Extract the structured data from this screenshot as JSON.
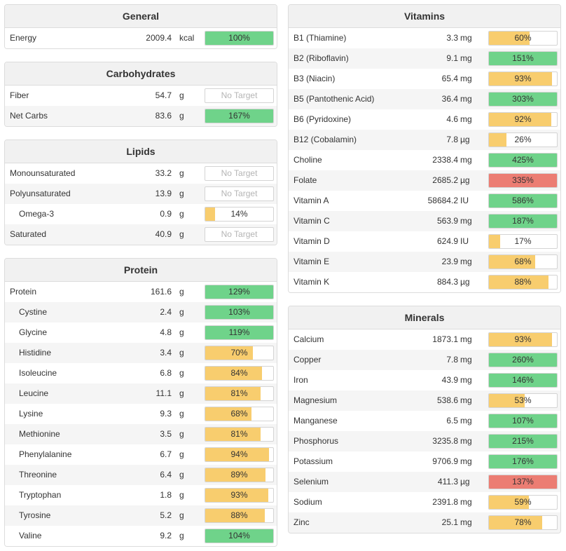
{
  "colors": {
    "green": "#6fd38a",
    "yellow": "#f8cd6e",
    "red": "#ec7d73"
  },
  "left": [
    {
      "title": "General",
      "rows": [
        {
          "name": "Energy",
          "amount": "2009.4",
          "unit": "kcal",
          "pct": 100,
          "label": "100%",
          "status": "green"
        }
      ]
    },
    {
      "title": "Carbohydrates",
      "rows": [
        {
          "name": "Fiber",
          "amount": "54.7",
          "unit": "g",
          "pct": null,
          "label": "No Target",
          "status": "none"
        },
        {
          "name": "Net Carbs",
          "amount": "83.6",
          "unit": "g",
          "pct": 167,
          "label": "167%",
          "status": "green"
        }
      ]
    },
    {
      "title": "Lipids",
      "rows": [
        {
          "name": "Monounsaturated",
          "amount": "33.2",
          "unit": "g",
          "pct": null,
          "label": "No Target",
          "status": "none"
        },
        {
          "name": "Polyunsaturated",
          "amount": "13.9",
          "unit": "g",
          "pct": null,
          "label": "No Target",
          "status": "none"
        },
        {
          "name": "Omega-3",
          "amount": "0.9",
          "unit": "g",
          "pct": 14,
          "label": "14%",
          "status": "yellow",
          "sub": true
        },
        {
          "name": "Saturated",
          "amount": "40.9",
          "unit": "g",
          "pct": null,
          "label": "No Target",
          "status": "none"
        }
      ]
    },
    {
      "title": "Protein",
      "rows": [
        {
          "name": "Protein",
          "amount": "161.6",
          "unit": "g",
          "pct": 129,
          "label": "129%",
          "status": "green"
        },
        {
          "name": "Cystine",
          "amount": "2.4",
          "unit": "g",
          "pct": 103,
          "label": "103%",
          "status": "green",
          "sub": true
        },
        {
          "name": "Glycine",
          "amount": "4.8",
          "unit": "g",
          "pct": 119,
          "label": "119%",
          "status": "green",
          "sub": true
        },
        {
          "name": "Histidine",
          "amount": "3.4",
          "unit": "g",
          "pct": 70,
          "label": "70%",
          "status": "yellow",
          "sub": true
        },
        {
          "name": "Isoleucine",
          "amount": "6.8",
          "unit": "g",
          "pct": 84,
          "label": "84%",
          "status": "yellow",
          "sub": true
        },
        {
          "name": "Leucine",
          "amount": "11.1",
          "unit": "g",
          "pct": 81,
          "label": "81%",
          "status": "yellow",
          "sub": true
        },
        {
          "name": "Lysine",
          "amount": "9.3",
          "unit": "g",
          "pct": 68,
          "label": "68%",
          "status": "yellow",
          "sub": true
        },
        {
          "name": "Methionine",
          "amount": "3.5",
          "unit": "g",
          "pct": 81,
          "label": "81%",
          "status": "yellow",
          "sub": true
        },
        {
          "name": "Phenylalanine",
          "amount": "6.7",
          "unit": "g",
          "pct": 94,
          "label": "94%",
          "status": "yellow",
          "sub": true
        },
        {
          "name": "Threonine",
          "amount": "6.4",
          "unit": "g",
          "pct": 89,
          "label": "89%",
          "status": "yellow",
          "sub": true
        },
        {
          "name": "Tryptophan",
          "amount": "1.8",
          "unit": "g",
          "pct": 93,
          "label": "93%",
          "status": "yellow",
          "sub": true
        },
        {
          "name": "Tyrosine",
          "amount": "5.2",
          "unit": "g",
          "pct": 88,
          "label": "88%",
          "status": "yellow",
          "sub": true
        },
        {
          "name": "Valine",
          "amount": "9.2",
          "unit": "g",
          "pct": 104,
          "label": "104%",
          "status": "green",
          "sub": true
        }
      ]
    }
  ],
  "right": [
    {
      "title": "Vitamins",
      "rows": [
        {
          "name": "B1 (Thiamine)",
          "amount": "3.3",
          "unit": "mg",
          "pct": 60,
          "label": "60%",
          "status": "yellow"
        },
        {
          "name": "B2 (Riboflavin)",
          "amount": "9.1",
          "unit": "mg",
          "pct": 151,
          "label": "151%",
          "status": "green"
        },
        {
          "name": "B3 (Niacin)",
          "amount": "65.4",
          "unit": "mg",
          "pct": 93,
          "label": "93%",
          "status": "yellow"
        },
        {
          "name": "B5 (Pantothenic Acid)",
          "amount": "36.4",
          "unit": "mg",
          "pct": 303,
          "label": "303%",
          "status": "green"
        },
        {
          "name": "B6 (Pyridoxine)",
          "amount": "4.6",
          "unit": "mg",
          "pct": 92,
          "label": "92%",
          "status": "yellow"
        },
        {
          "name": "B12 (Cobalamin)",
          "amount": "7.8",
          "unit": "µg",
          "pct": 26,
          "label": "26%",
          "status": "yellow"
        },
        {
          "name": "Choline",
          "amount": "2338.4",
          "unit": "mg",
          "pct": 425,
          "label": "425%",
          "status": "green"
        },
        {
          "name": "Folate",
          "amount": "2685.2",
          "unit": "µg",
          "pct": 335,
          "label": "335%",
          "status": "red"
        },
        {
          "name": "Vitamin A",
          "amount": "58684.2",
          "unit": "IU",
          "pct": 586,
          "label": "586%",
          "status": "green"
        },
        {
          "name": "Vitamin C",
          "amount": "563.9",
          "unit": "mg",
          "pct": 187,
          "label": "187%",
          "status": "green"
        },
        {
          "name": "Vitamin D",
          "amount": "624.9",
          "unit": "IU",
          "pct": 17,
          "label": "17%",
          "status": "yellow"
        },
        {
          "name": "Vitamin E",
          "amount": "23.9",
          "unit": "mg",
          "pct": 68,
          "label": "68%",
          "status": "yellow"
        },
        {
          "name": "Vitamin K",
          "amount": "884.3",
          "unit": "µg",
          "pct": 88,
          "label": "88%",
          "status": "yellow"
        }
      ]
    },
    {
      "title": "Minerals",
      "rows": [
        {
          "name": "Calcium",
          "amount": "1873.1",
          "unit": "mg",
          "pct": 93,
          "label": "93%",
          "status": "yellow"
        },
        {
          "name": "Copper",
          "amount": "7.8",
          "unit": "mg",
          "pct": 260,
          "label": "260%",
          "status": "green"
        },
        {
          "name": "Iron",
          "amount": "43.9",
          "unit": "mg",
          "pct": 146,
          "label": "146%",
          "status": "green"
        },
        {
          "name": "Magnesium",
          "amount": "538.6",
          "unit": "mg",
          "pct": 53,
          "label": "53%",
          "status": "yellow"
        },
        {
          "name": "Manganese",
          "amount": "6.5",
          "unit": "mg",
          "pct": 107,
          "label": "107%",
          "status": "green"
        },
        {
          "name": "Phosphorus",
          "amount": "3235.8",
          "unit": "mg",
          "pct": 215,
          "label": "215%",
          "status": "green"
        },
        {
          "name": "Potassium",
          "amount": "9706.9",
          "unit": "mg",
          "pct": 176,
          "label": "176%",
          "status": "green"
        },
        {
          "name": "Selenium",
          "amount": "411.3",
          "unit": "µg",
          "pct": 137,
          "label": "137%",
          "status": "red"
        },
        {
          "name": "Sodium",
          "amount": "2391.8",
          "unit": "mg",
          "pct": 59,
          "label": "59%",
          "status": "yellow"
        },
        {
          "name": "Zinc",
          "amount": "25.1",
          "unit": "mg",
          "pct": 78,
          "label": "78%",
          "status": "yellow"
        }
      ]
    }
  ]
}
